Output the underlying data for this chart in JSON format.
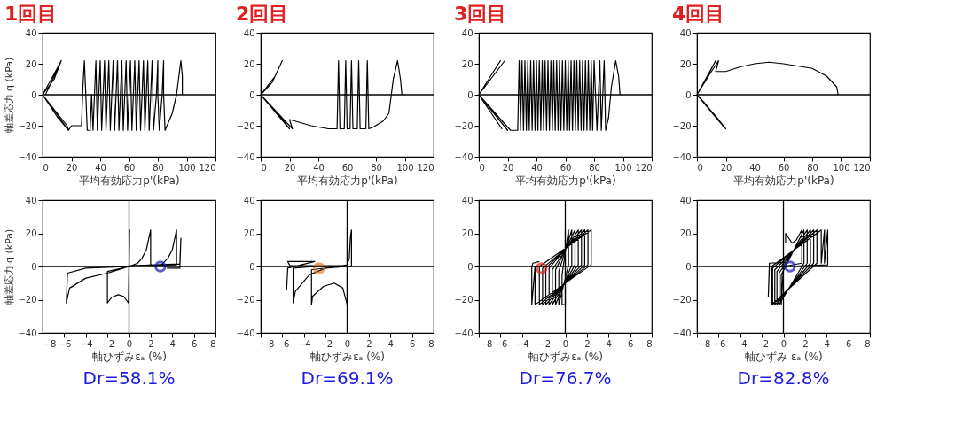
{
  "chart_data": [
    {
      "type": "line",
      "title": "1回目",
      "xlabel": "平均有効応力p'(kPa)",
      "ylabel": "軸差応力 q (kPa)",
      "xlim": [
        0,
        120
      ],
      "xticks": [
        0,
        20,
        40,
        60,
        80,
        100,
        120
      ],
      "ylim": [
        -40,
        40
      ],
      "yticks": [
        -40,
        -20,
        0,
        20,
        40
      ],
      "grid": false,
      "ref_lines": [
        {
          "axis": "y",
          "value": 0
        }
      ],
      "series": [
        {
          "color": "#000000",
          "x": [
            97,
            97,
            96,
            95,
            93,
            90,
            85,
            84,
            84,
            83,
            81,
            80,
            80,
            79,
            77,
            76,
            74,
            73,
            71,
            70,
            68,
            67,
            65,
            64,
            62,
            61,
            59,
            58,
            56,
            55,
            53,
            52,
            50,
            49,
            47,
            46,
            44,
            43,
            41,
            40,
            38,
            37,
            35,
            34,
            33,
            31,
            30,
            29,
            28,
            27,
            20,
            18,
            8,
            0,
            6,
            13,
            8,
            0,
            17,
            18,
            10,
            0,
            12,
            2
          ],
          "values": [
            0,
            12,
            22,
            15,
            0,
            -12,
            -23,
            0,
            22,
            0,
            -23,
            0,
            22,
            0,
            -23,
            22,
            -23,
            22,
            -23,
            22,
            -23,
            22,
            -23,
            22,
            -23,
            22,
            -23,
            22,
            -23,
            22,
            -23,
            22,
            -23,
            22,
            -23,
            22,
            -23,
            22,
            -23,
            22,
            -23,
            22,
            -23,
            0,
            -23,
            -23,
            0,
            22,
            5,
            -20,
            -20,
            -23,
            -10,
            0,
            10,
            22,
            10,
            0,
            -20,
            -23,
            -14,
            0,
            20,
            0
          ]
        }
      ]
    },
    {
      "type": "line",
      "title": "2回目",
      "xlabel": "平均有効応力p'(kPa)",
      "xlim": [
        0,
        120
      ],
      "xticks": [
        0,
        20,
        40,
        60,
        80,
        100,
        120
      ],
      "ylim": [
        -40,
        40
      ],
      "yticks": [
        -40,
        -20,
        0,
        20,
        40
      ],
      "grid": false,
      "ref_lines": [
        {
          "axis": "y",
          "value": 0
        }
      ],
      "series": [
        {
          "color": "#000000",
          "x": [
            98,
            97,
            95,
            92,
            89,
            85,
            78,
            75,
            74,
            73,
            69,
            68,
            67,
            64,
            63,
            62,
            60,
            59,
            58,
            55,
            54,
            53,
            47,
            35,
            20,
            22,
            15,
            5,
            0,
            8,
            15,
            10,
            0,
            20,
            12,
            0
          ],
          "values": [
            0,
            10,
            22,
            10,
            -12,
            -17,
            -21,
            -22,
            22,
            -22,
            -22,
            22,
            -22,
            -22,
            22,
            -22,
            -22,
            22,
            -22,
            -22,
            22,
            -22,
            -22,
            -20,
            -16,
            -22,
            -15,
            -5,
            0,
            8,
            22,
            12,
            0,
            -22,
            -12,
            0
          ]
        }
      ]
    },
    {
      "type": "line",
      "title": "3回目",
      "xlabel": "平均有効応力p'(kPa)",
      "xlim": [
        0,
        120
      ],
      "xticks": [
        0,
        20,
        40,
        60,
        80,
        100,
        120
      ],
      "ylim": [
        -40,
        40
      ],
      "yticks": [
        -40,
        -20,
        0,
        20,
        40
      ],
      "grid": false,
      "ref_lines": [
        {
          "axis": "y",
          "value": 0
        }
      ],
      "series": [
        {
          "color": "#000000",
          "x": [
            98,
            97,
            95,
            92,
            90,
            88,
            87,
            85,
            84,
            82,
            80,
            79,
            78,
            77,
            76,
            75,
            74,
            73,
            72,
            71,
            70,
            69,
            68,
            67,
            66,
            65,
            64,
            63,
            62,
            61,
            60,
            59,
            58,
            57,
            56,
            55,
            54,
            53,
            52,
            51,
            50,
            49,
            48,
            47,
            46,
            45,
            44,
            43,
            42,
            41,
            40,
            39,
            38,
            37,
            36,
            35,
            34,
            33,
            32,
            31,
            30,
            29,
            28,
            27,
            22,
            0,
            18,
            0,
            20,
            0,
            15,
            0,
            16,
            0
          ],
          "values": [
            0,
            12,
            22,
            5,
            -15,
            -23,
            22,
            -23,
            22,
            -23,
            22,
            -23,
            22,
            -23,
            22,
            -23,
            22,
            -23,
            22,
            -23,
            22,
            -23,
            22,
            -23,
            22,
            -23,
            22,
            -23,
            22,
            -23,
            22,
            -23,
            22,
            -23,
            22,
            -23,
            22,
            -23,
            22,
            -23,
            22,
            -23,
            22,
            -23,
            22,
            -23,
            22,
            -23,
            22,
            -23,
            22,
            -23,
            22,
            -23,
            22,
            -23,
            22,
            -23,
            22,
            -23,
            22,
            -23,
            22,
            -23,
            -23,
            0,
            22,
            0,
            -23,
            0,
            22,
            0,
            -22,
            0
          ]
        }
      ]
    },
    {
      "type": "line",
      "title": "4回目",
      "xlabel": "平均有効応力p'(kPa)",
      "xlim": [
        0,
        120
      ],
      "xticks": [
        0,
        20,
        40,
        60,
        80,
        100,
        120
      ],
      "ylim": [
        -40,
        40
      ],
      "yticks": [
        -40,
        -20,
        0,
        20,
        40
      ],
      "grid": false,
      "ref_lines": [
        {
          "axis": "y",
          "value": 0
        }
      ],
      "series": [
        {
          "color": "#000000",
          "x": [
            98,
            97,
            90,
            80,
            60,
            50,
            40,
            30,
            20,
            13,
            15,
            10,
            0,
            13,
            5,
            0,
            20,
            15,
            0,
            18,
            5,
            0
          ],
          "values": [
            0,
            5,
            12,
            17,
            20,
            21,
            20,
            18,
            15,
            15,
            22,
            15,
            0,
            22,
            8,
            0,
            -22,
            -16,
            0,
            -20,
            -5,
            0
          ]
        }
      ]
    },
    {
      "type": "line",
      "title": "Dr=58.1%",
      "xlabel": "軸ひずみεₐ (%)",
      "ylabel": "軸差応力 q (kPa)",
      "xlim": [
        -8,
        8
      ],
      "xticks": [
        -8,
        -6,
        -4,
        -2,
        0,
        2,
        4,
        6,
        8
      ],
      "ylim": [
        -40,
        40
      ],
      "yticks": [
        -40,
        -20,
        0,
        20,
        40
      ],
      "grid": false,
      "ref_lines": [
        {
          "axis": "y",
          "value": 0
        },
        {
          "axis": "x",
          "value": 0
        }
      ],
      "series": [
        {
          "color": "#000000",
          "x": [
            0,
            0.05,
            0,
            -0.05,
            -0.5,
            -1,
            -1.6,
            -2,
            -2,
            -1,
            0,
            0.8,
            1.2,
            1.6,
            2,
            2,
            0,
            -2,
            -4,
            -5.5,
            -5.8,
            -5.7,
            -4,
            0,
            3,
            3.6,
            4,
            4.4,
            4.4,
            0,
            4.7,
            4.8,
            4.7,
            3.5
          ],
          "values": [
            0,
            22,
            0,
            -22,
            -18,
            -17,
            -18.5,
            -22,
            -3,
            -1.5,
            0,
            2,
            5,
            10,
            22,
            1,
            0,
            -4,
            -7,
            -13,
            -22,
            -4,
            -1,
            0,
            1,
            5,
            10,
            22,
            1,
            0.5,
            1.5,
            17,
            -1,
            -1
          ]
        },
        {
          "type": "scatter",
          "color": "#1a1ab8",
          "marker": "circle",
          "x": [
            2.9
          ],
          "values": [
            0
          ]
        }
      ]
    },
    {
      "type": "line",
      "title": "Dr=69.1%",
      "xlabel": "軸ひずみεₐ (%)",
      "xlim": [
        -8,
        8
      ],
      "xticks": [
        -8,
        -6,
        -4,
        -2,
        0,
        2,
        4,
        6,
        8
      ],
      "ylim": [
        -40,
        40
      ],
      "yticks": [
        -40,
        -20,
        0,
        20,
        40
      ],
      "grid": false,
      "ref_lines": [
        {
          "axis": "y",
          "value": 0
        },
        {
          "axis": "x",
          "value": 0
        }
      ],
      "series": [
        {
          "color": "#000000",
          "x": [
            0,
            0,
            0,
            -0.4,
            -1.2,
            -2.2,
            -3.2,
            -3.3,
            -3.3,
            -1,
            0,
            0.2,
            0.3,
            0.4,
            0.4,
            0,
            -2,
            -3.5,
            -4.8,
            -5,
            -5,
            -3,
            0,
            -5.3,
            -5.5,
            -3.5,
            -3,
            -5.5,
            -5.6
          ],
          "values": [
            0,
            23,
            -23,
            -13,
            -10,
            -12,
            -18,
            -23,
            -2,
            0,
            1,
            5,
            18,
            22,
            0,
            0,
            -1,
            -5,
            -15,
            -22,
            -1,
            0,
            0.5,
            0.5,
            3,
            3,
            3,
            -1,
            -14
          ]
        },
        {
          "type": "scatter",
          "color": "#e87722",
          "marker": "circle",
          "x": [
            -2.6
          ],
          "values": [
            -1
          ]
        }
      ]
    },
    {
      "type": "line",
      "title": "Dr=76.7%",
      "xlabel": "軸ひずみεₐ (%)",
      "xlim": [
        -8,
        8
      ],
      "xticks": [
        -8,
        -6,
        -4,
        -2,
        0,
        2,
        4,
        6,
        8
      ],
      "ylim": [
        -40,
        40
      ],
      "yticks": [
        -40,
        -20,
        0,
        20,
        40
      ],
      "grid": false,
      "ref_lines": [
        {
          "axis": "y",
          "value": 0
        },
        {
          "axis": "x",
          "value": 0
        }
      ],
      "series": [
        {
          "color": "#000000",
          "x": [
            0,
            0,
            0,
            -0.3,
            -0.3,
            0.3,
            0.3,
            -0.6,
            -0.6,
            0.6,
            0.6,
            -0.9,
            -0.9,
            0.9,
            0.9,
            -1.2,
            -1.2,
            1.2,
            1.2,
            -1.5,
            -1.5,
            1.5,
            1.5,
            -1.8,
            -1.8,
            1.8,
            1.8,
            -2.1,
            -2.1,
            2.1,
            2.1,
            -2.4,
            -2.4,
            2.4,
            2.4,
            -2.8,
            -2.8,
            -3.1,
            -3.1,
            -3,
            -2.4
          ],
          "values": [
            0,
            22,
            -23,
            -23,
            -5,
            22,
            1,
            -23,
            -3,
            22,
            1,
            -23,
            -2,
            22,
            1,
            -23,
            -2,
            22,
            1,
            -23,
            -1,
            22,
            1,
            -23,
            -1,
            22,
            1,
            -23,
            -1,
            22,
            1,
            -23,
            0,
            22,
            1,
            -23,
            0,
            -23,
            0,
            2,
            3
          ]
        },
        {
          "type": "scatter",
          "color": "#e02020",
          "marker": "circle",
          "x": [
            -2.2
          ],
          "values": [
            -1
          ]
        }
      ]
    },
    {
      "type": "line",
      "title": "Dr=82.8%",
      "xlabel": "軸ひずみ εₐ (%)",
      "xlim": [
        -8,
        8
      ],
      "xticks": [
        -8,
        -6,
        -4,
        -2,
        0,
        2,
        4,
        6,
        8
      ],
      "ylim": [
        -40,
        40
      ],
      "yticks": [
        -40,
        -20,
        0,
        20,
        40
      ],
      "grid": false,
      "ref_lines": [
        {
          "axis": "y",
          "value": 0
        },
        {
          "axis": "x",
          "value": 0
        }
      ],
      "series": [
        {
          "color": "#000000",
          "x": [
            0.2,
            0.2,
            0.8,
            1.2,
            1.7,
            1.7,
            0,
            -0.2,
            -0.2,
            1.9,
            1.9,
            -0.4,
            -0.4,
            2.2,
            2.2,
            -0.6,
            -0.6,
            2.5,
            2.5,
            -0.8,
            -0.8,
            2.8,
            2.8,
            -1,
            -1,
            3.1,
            3.1,
            -1.1,
            -1.1,
            3.5,
            3.5,
            3.8,
            3.8,
            4.1,
            4.1,
            0,
            -1.3,
            -1.4,
            -1.3,
            0,
            0.2
          ],
          "values": [
            14,
            20,
            14,
            16,
            22,
            2,
            0,
            -23,
            -5,
            22,
            2,
            -23,
            -4,
            22,
            2,
            -23,
            -3,
            22,
            2,
            -23,
            -2,
            22,
            2,
            -23,
            -1,
            22,
            2,
            -23,
            0,
            22,
            2,
            22,
            2,
            22,
            1,
            0,
            0,
            -18,
            2,
            2.5,
            2
          ]
        },
        {
          "type": "scatter",
          "color": "#1a1ab8",
          "marker": "circle",
          "x": [
            0.6
          ],
          "values": [
            0
          ]
        }
      ]
    }
  ]
}
